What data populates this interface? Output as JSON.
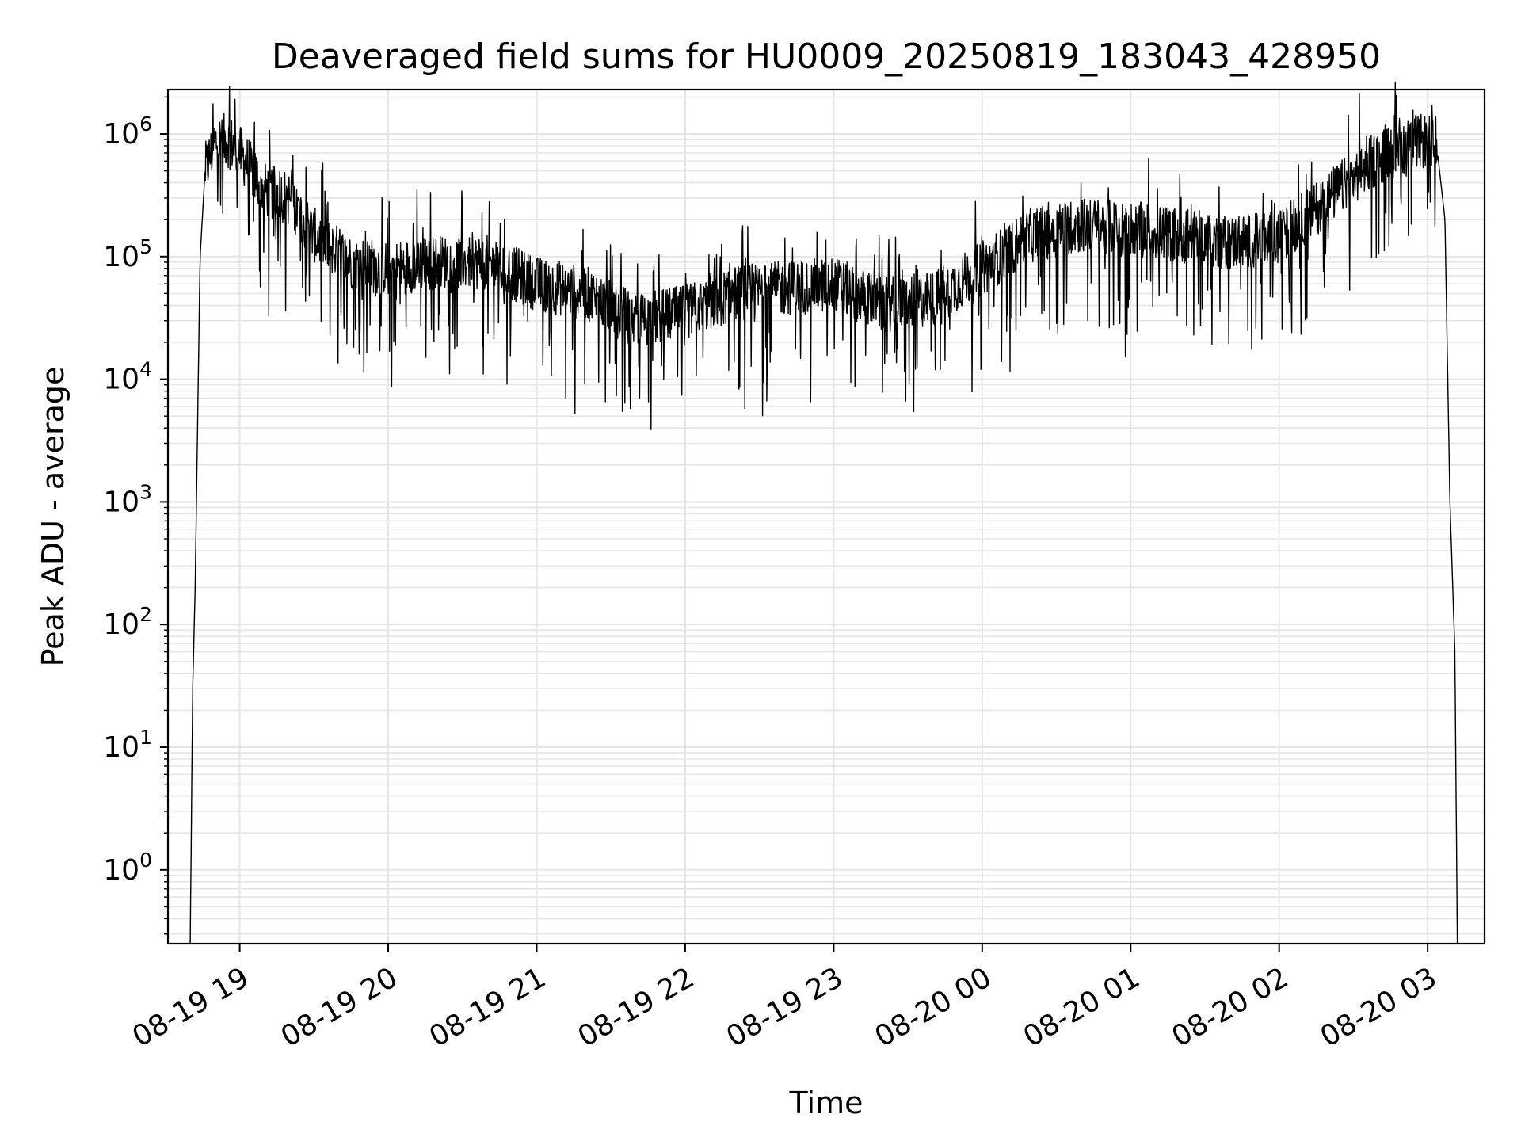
{
  "chart_data": {
    "type": "line",
    "title": "Deaveraged field sums for HU0009_20250819_183043_428950",
    "xlabel": "Time",
    "ylabel": "Peak ADU - average",
    "xscale": "time",
    "yscale": "log",
    "xlim": [
      "2025-08-19 18:31",
      "2025-08-20 03:23"
    ],
    "ylim": [
      0.25,
      2300000
    ],
    "x_ticks": [
      "08-19 19",
      "08-19 20",
      "08-19 21",
      "08-19 22",
      "08-19 23",
      "08-20 00",
      "08-20 01",
      "08-20 02",
      "08-20 03"
    ],
    "y_ticks": [
      {
        "base": "10",
        "exp": "0",
        "value": 1
      },
      {
        "base": "10",
        "exp": "1",
        "value": 10
      },
      {
        "base": "10",
        "exp": "2",
        "value": 100
      },
      {
        "base": "10",
        "exp": "3",
        "value": 1000
      },
      {
        "base": "10",
        "exp": "4",
        "value": 10000
      },
      {
        "base": "10",
        "exp": "5",
        "value": 100000
      },
      {
        "base": "10",
        "exp": "6",
        "value": 1000000
      }
    ],
    "grid": true,
    "minor_grid": true,
    "legend": "none",
    "line_color": "#000000",
    "grid_color": "#e5e5e5",
    "series": [
      {
        "x": [
          "2025-08-19 18:40",
          "2025-08-19 18:41",
          "2025-08-19 18:42",
          "2025-08-19 18:44",
          "2025-08-19 18:46",
          "2025-08-19 18:50",
          "2025-08-19 18:55",
          "2025-08-19 19:00",
          "2025-08-19 19:10",
          "2025-08-19 19:20",
          "2025-08-19 19:30",
          "2025-08-19 19:45",
          "2025-08-19 20:00",
          "2025-08-19 20:20",
          "2025-08-19 20:40",
          "2025-08-19 21:00",
          "2025-08-19 21:20",
          "2025-08-19 21:40",
          "2025-08-19 22:00",
          "2025-08-19 22:20",
          "2025-08-19 22:40",
          "2025-08-19 23:00",
          "2025-08-19 23:20",
          "2025-08-19 23:40",
          "2025-08-20 00:00",
          "2025-08-20 00:20",
          "2025-08-20 00:40",
          "2025-08-20 01:00",
          "2025-08-20 01:20",
          "2025-08-20 01:40",
          "2025-08-20 02:00",
          "2025-08-20 02:20",
          "2025-08-20 02:40",
          "2025-08-20 02:55",
          "2025-08-20 03:00",
          "2025-08-20 03:04",
          "2025-08-20 03:07",
          "2025-08-20 03:09",
          "2025-08-20 03:11",
          "2025-08-20 03:12"
        ],
        "values": [
          0.25,
          30,
          200,
          100000,
          500000,
          850000,
          900000,
          700000,
          350000,
          300000,
          150000,
          90000,
          80000,
          90000,
          90000,
          60000,
          50000,
          30000,
          35000,
          50000,
          55000,
          60000,
          40000,
          45000,
          80000,
          150000,
          180000,
          170000,
          150000,
          130000,
          140000,
          300000,
          650000,
          850000,
          880000,
          700000,
          200000,
          1000,
          60,
          0.25
        ]
      }
    ]
  }
}
